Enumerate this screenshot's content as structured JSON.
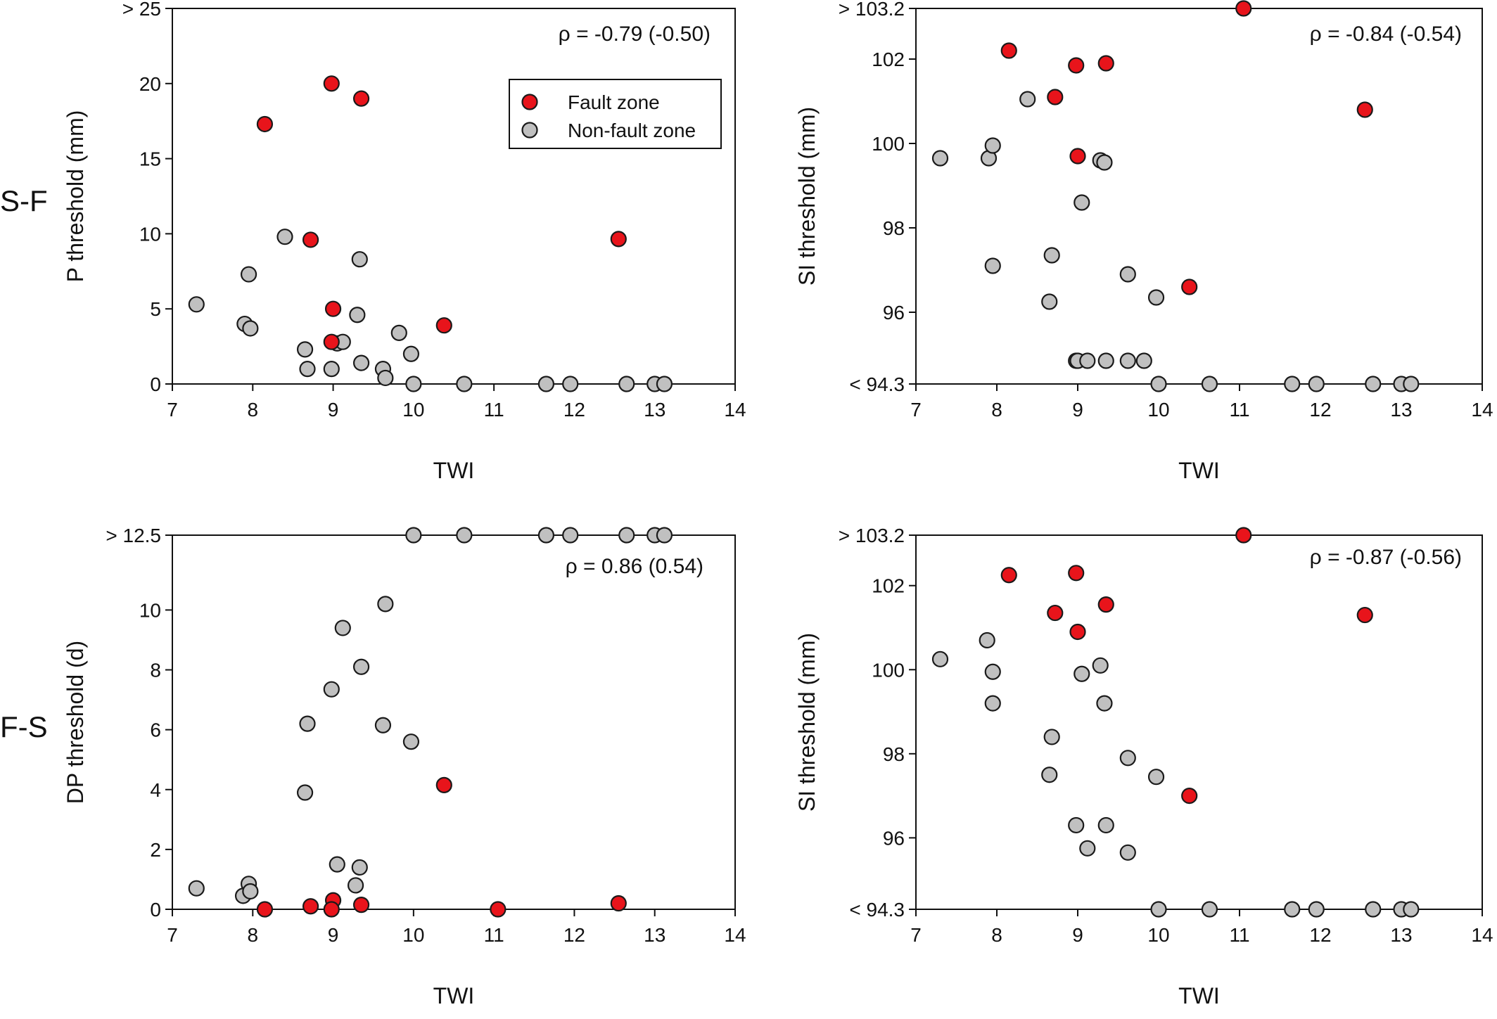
{
  "row_labels": [
    "S-F",
    "F-S"
  ],
  "legend": {
    "fault": "Fault zone",
    "nonfault": "Non-fault zone"
  },
  "colors": {
    "fault": "#e8141b",
    "nonfault": "#c0c0c0",
    "stroke": "#1a1a1a"
  },
  "chart_data": [
    {
      "type": "scatter",
      "xlabel": "TWI",
      "ylabel": "P threshold (mm)",
      "annotation": "ρ = -0.79 (-0.50)",
      "xlim": [
        7,
        14
      ],
      "ylim": [
        0,
        25
      ],
      "xticks": [
        "7",
        "8",
        "9",
        "10",
        "11",
        "12",
        "13",
        "14"
      ],
      "yticks": [
        {
          "v": 0,
          "label": "0"
        },
        {
          "v": 5,
          "label": "5"
        },
        {
          "v": 10,
          "label": "10"
        },
        {
          "v": 15,
          "label": "15"
        },
        {
          "v": 20,
          "label": "20"
        },
        {
          "v": 25,
          "label": "> 25"
        }
      ],
      "legend": true,
      "legend_position": "top-right",
      "series": [
        {
          "name": "Fault zone",
          "zone": "fault",
          "points": [
            [
              8.15,
              17.3
            ],
            [
              8.98,
              20.0
            ],
            [
              9.35,
              19.0
            ],
            [
              8.72,
              9.6
            ],
            [
              12.55,
              9.65
            ],
            [
              9.0,
              5.0
            ],
            [
              10.38,
              3.9
            ],
            [
              8.98,
              2.8
            ]
          ]
        },
        {
          "name": "Non-fault zone",
          "zone": "nonfault",
          "points": [
            [
              7.3,
              5.3
            ],
            [
              7.9,
              4.0
            ],
            [
              7.95,
              7.3
            ],
            [
              7.97,
              3.7
            ],
            [
              8.4,
              9.8
            ],
            [
              8.65,
              2.3
            ],
            [
              8.68,
              1.0
            ],
            [
              8.98,
              1.0
            ],
            [
              9.05,
              2.7
            ],
            [
              9.12,
              2.8
            ],
            [
              9.3,
              4.6
            ],
            [
              9.33,
              8.3
            ],
            [
              9.35,
              1.4
            ],
            [
              9.62,
              1.0
            ],
            [
              9.65,
              0.4
            ],
            [
              9.82,
              3.4
            ],
            [
              9.97,
              2.0
            ],
            [
              10.0,
              0.0
            ],
            [
              10.63,
              0.0
            ],
            [
              11.65,
              0.0
            ],
            [
              11.95,
              0.0
            ],
            [
              12.65,
              0.0
            ],
            [
              13.0,
              0.0
            ],
            [
              13.12,
              0.0
            ]
          ]
        }
      ]
    },
    {
      "type": "scatter",
      "xlabel": "TWI",
      "ylabel": "SI threshold (mm)",
      "annotation": "ρ = -0.84 (-0.54)",
      "xlim": [
        7,
        14
      ],
      "ylim": [
        94.3,
        103.2
      ],
      "xticks": [
        "7",
        "8",
        "9",
        "10",
        "11",
        "12",
        "13",
        "14"
      ],
      "yticks": [
        {
          "v": 94.3,
          "label": "< 94.3"
        },
        {
          "v": 96,
          "label": "96"
        },
        {
          "v": 98,
          "label": "98"
        },
        {
          "v": 100,
          "label": "100"
        },
        {
          "v": 102,
          "label": "102"
        },
        {
          "v": 103.2,
          "label": "> 103.2"
        }
      ],
      "legend": false,
      "series": [
        {
          "name": "Fault zone",
          "zone": "fault",
          "points": [
            [
              11.05,
              103.2
            ],
            [
              8.15,
              102.2
            ],
            [
              8.98,
              101.85
            ],
            [
              9.35,
              101.9
            ],
            [
              8.72,
              101.1
            ],
            [
              12.55,
              100.8
            ],
            [
              9.0,
              99.7
            ],
            [
              10.38,
              96.6
            ]
          ]
        },
        {
          "name": "Non-fault zone",
          "zone": "nonfault",
          "points": [
            [
              7.3,
              99.65
            ],
            [
              7.9,
              99.65
            ],
            [
              7.95,
              99.95
            ],
            [
              7.95,
              97.1
            ],
            [
              8.38,
              101.05
            ],
            [
              8.68,
              97.35
            ],
            [
              8.65,
              96.25
            ],
            [
              9.28,
              99.6
            ],
            [
              9.33,
              99.55
            ],
            [
              9.05,
              98.6
            ],
            [
              9.62,
              96.9
            ],
            [
              9.97,
              96.35
            ],
            [
              8.98,
              94.85
            ],
            [
              9.0,
              94.85
            ],
            [
              9.12,
              94.85
            ],
            [
              9.35,
              94.85
            ],
            [
              9.62,
              94.85
            ],
            [
              9.82,
              94.85
            ],
            [
              10.0,
              94.3
            ],
            [
              10.63,
              94.3
            ],
            [
              11.65,
              94.3
            ],
            [
              11.95,
              94.3
            ],
            [
              12.65,
              94.3
            ],
            [
              13.0,
              94.3
            ],
            [
              13.12,
              94.3
            ]
          ]
        }
      ]
    },
    {
      "type": "scatter",
      "xlabel": "TWI",
      "ylabel": "DP threshold (d)",
      "annotation": "ρ = 0.86 (0.54)",
      "xlim": [
        7,
        14
      ],
      "ylim": [
        0,
        12.5
      ],
      "xticks": [
        "7",
        "8",
        "9",
        "10",
        "11",
        "12",
        "13",
        "14"
      ],
      "yticks": [
        {
          "v": 0,
          "label": "0"
        },
        {
          "v": 2,
          "label": "2"
        },
        {
          "v": 4,
          "label": "4"
        },
        {
          "v": 6,
          "label": "6"
        },
        {
          "v": 8,
          "label": "8"
        },
        {
          "v": 10,
          "label": "10"
        },
        {
          "v": 12.5,
          "label": "> 12.5"
        }
      ],
      "legend": false,
      "series": [
        {
          "name": "Fault zone",
          "zone": "fault",
          "points": [
            [
              8.15,
              0.0
            ],
            [
              8.72,
              0.1
            ],
            [
              9.0,
              0.3
            ],
            [
              8.98,
              0.0
            ],
            [
              9.35,
              0.15
            ],
            [
              10.38,
              4.15
            ],
            [
              11.05,
              0.0
            ],
            [
              12.55,
              0.2
            ]
          ]
        },
        {
          "name": "Non-fault zone",
          "zone": "nonfault",
          "points": [
            [
              7.3,
              0.7
            ],
            [
              7.88,
              0.45
            ],
            [
              7.95,
              0.85
            ],
            [
              7.97,
              0.6
            ],
            [
              8.65,
              3.9
            ],
            [
              8.68,
              6.2
            ],
            [
              8.98,
              7.35
            ],
            [
              9.05,
              1.5
            ],
            [
              9.12,
              9.4
            ],
            [
              9.28,
              0.8
            ],
            [
              9.33,
              1.4
            ],
            [
              9.35,
              8.1
            ],
            [
              9.62,
              6.15
            ],
            [
              9.65,
              10.2
            ],
            [
              9.97,
              5.6
            ],
            [
              10.0,
              12.5
            ],
            [
              10.63,
              12.5
            ],
            [
              11.65,
              12.5
            ],
            [
              11.95,
              12.5
            ],
            [
              12.65,
              12.5
            ],
            [
              13.0,
              12.5
            ],
            [
              13.12,
              12.5
            ]
          ]
        }
      ]
    },
    {
      "type": "scatter",
      "xlabel": "TWI",
      "ylabel": "SI threshold (mm)",
      "annotation": "ρ = -0.87 (-0.56)",
      "xlim": [
        7,
        14
      ],
      "ylim": [
        94.3,
        103.2
      ],
      "xticks": [
        "7",
        "8",
        "9",
        "10",
        "11",
        "12",
        "13",
        "14"
      ],
      "yticks": [
        {
          "v": 94.3,
          "label": "< 94.3"
        },
        {
          "v": 96,
          "label": "96"
        },
        {
          "v": 98,
          "label": "98"
        },
        {
          "v": 100,
          "label": "100"
        },
        {
          "v": 102,
          "label": "102"
        },
        {
          "v": 103.2,
          "label": "> 103.2"
        }
      ],
      "legend": false,
      "series": [
        {
          "name": "Fault zone",
          "zone": "fault",
          "points": [
            [
              11.05,
              103.2
            ],
            [
              8.15,
              102.25
            ],
            [
              8.98,
              102.3
            ],
            [
              9.35,
              101.55
            ],
            [
              8.72,
              101.35
            ],
            [
              12.55,
              101.3
            ],
            [
              9.0,
              100.9
            ],
            [
              10.38,
              97.0
            ]
          ]
        },
        {
          "name": "Non-fault zone",
          "zone": "nonfault",
          "points": [
            [
              7.3,
              100.25
            ],
            [
              7.88,
              100.7
            ],
            [
              7.95,
              99.95
            ],
            [
              7.95,
              99.2
            ],
            [
              8.68,
              98.4
            ],
            [
              8.65,
              97.5
            ],
            [
              9.28,
              100.1
            ],
            [
              9.05,
              99.9
            ],
            [
              9.33,
              99.2
            ],
            [
              9.62,
              97.9
            ],
            [
              9.97,
              97.45
            ],
            [
              8.98,
              96.3
            ],
            [
              9.35,
              96.3
            ],
            [
              9.12,
              95.75
            ],
            [
              9.62,
              95.65
            ],
            [
              10.0,
              94.3
            ],
            [
              10.63,
              94.3
            ],
            [
              11.65,
              94.3
            ],
            [
              11.95,
              94.3
            ],
            [
              12.65,
              94.3
            ],
            [
              13.0,
              94.3
            ],
            [
              13.12,
              94.3
            ]
          ]
        }
      ]
    }
  ]
}
